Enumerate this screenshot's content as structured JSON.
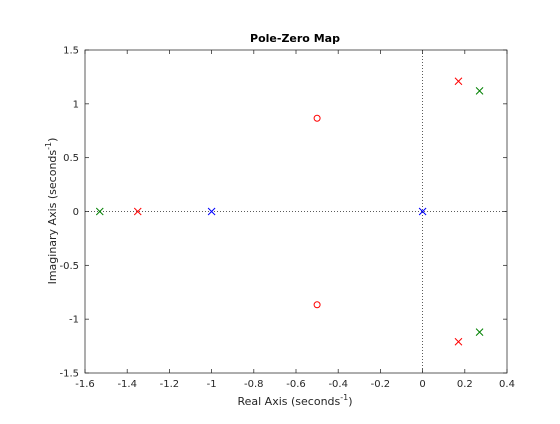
{
  "chart_data": {
    "type": "scatter",
    "title": "Pole-Zero Map",
    "xlabel": {
      "text": "Real Axis (seconds",
      "sup": "-1",
      "close": ")"
    },
    "ylabel": {
      "text": "Imaginary Axis (seconds",
      "sup": "-1",
      "close": ")"
    },
    "xlim": [
      -1.6,
      0.4
    ],
    "ylim": [
      -1.5,
      1.5
    ],
    "xticks": [
      -1.6,
      -1.4,
      -1.2,
      -1,
      -0.8,
      -0.6,
      -0.4,
      -0.2,
      0,
      0.2,
      0.4
    ],
    "xtick_labels": [
      "-1.6",
      "-1.4",
      "-1.2",
      "-1",
      "-0.8",
      "-0.6",
      "-0.4",
      "-0.2",
      "0",
      "0.2",
      "0.4"
    ],
    "yticks": [
      -1.5,
      -1,
      -0.5,
      0,
      0.5,
      1,
      1.5
    ],
    "ytick_labels": [
      "-1.5",
      "-1",
      "-0.5",
      "0",
      "0.5",
      "1",
      "1.5"
    ],
    "grid": false,
    "reference_lines": {
      "x": 0,
      "y": 0
    },
    "series": [
      {
        "color": "#0000ff",
        "poles": [
          {
            "x": 0,
            "y": 0
          },
          {
            "x": -1,
            "y": 0
          }
        ],
        "zeros": []
      },
      {
        "color": "#ff0000",
        "poles": [
          {
            "x": -1.35,
            "y": 0
          },
          {
            "x": 0.17,
            "y": 1.21
          },
          {
            "x": 0.17,
            "y": -1.21
          }
        ],
        "zeros": [
          {
            "x": -0.5,
            "y": 0.866
          },
          {
            "x": -0.5,
            "y": -0.866
          }
        ]
      },
      {
        "color": "#008000",
        "poles": [
          {
            "x": -1.53,
            "y": 0
          },
          {
            "x": 0.27,
            "y": 1.12
          },
          {
            "x": 0.27,
            "y": -1.12
          }
        ],
        "zeros": []
      }
    ]
  }
}
